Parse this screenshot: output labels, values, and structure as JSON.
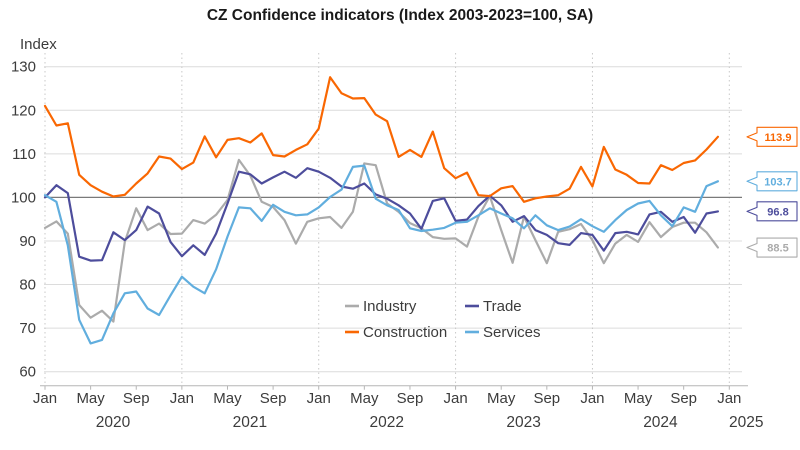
{
  "title": "CZ Confidence indicators (Index 2003-2023=100, SA)",
  "y_axis_label": "Index",
  "chart_data": {
    "type": "line",
    "frequency": "monthly",
    "x_range": [
      "2020-01",
      "2024-12"
    ],
    "x_tick_months": [
      "Jan",
      "May",
      "Sep"
    ],
    "x_tick_years": [
      "2020",
      "2021",
      "2022",
      "2023",
      "2024",
      "2025"
    ],
    "ylim": [
      60,
      130
    ],
    "y_ticks": [
      60,
      70,
      80,
      90,
      100,
      110,
      120,
      130
    ],
    "reference_line": 100,
    "grid": true,
    "legend_position": "bottom-center-inside",
    "legend_order": [
      [
        "Industry",
        "Construction"
      ],
      [
        "Trade",
        "Services"
      ]
    ],
    "series": [
      {
        "name": "Industry",
        "color": "#ababab",
        "end_label": "88.5",
        "values": [
          93,
          94.5,
          91.7,
          75.3,
          72.4,
          74,
          71.5,
          89.8,
          97.5,
          92.5,
          94,
          91.6,
          91.7,
          94.8,
          94,
          96,
          99.4,
          108.6,
          105,
          99,
          97.8,
          94.8,
          89.4,
          94.4,
          95.2,
          95.5,
          93,
          96.7,
          107.8,
          107.4,
          98.6,
          96.7,
          94.1,
          92.9,
          90.9,
          90.5,
          90.6,
          88.7,
          95.6,
          100.3,
          92.5,
          85,
          95.6,
          90.2,
          84.9,
          92.1,
          92.7,
          93.9,
          90.2,
          84.9,
          89.4,
          91.4,
          89.8,
          94.3,
          90.9,
          93.2,
          94.2,
          94.2,
          92,
          88.5
        ]
      },
      {
        "name": "Construction",
        "color": "#f96702",
        "end_label": "113.9",
        "values": [
          121,
          116.5,
          117,
          105.2,
          102.8,
          101.3,
          100.2,
          100.6,
          103.2,
          105.5,
          109.4,
          108.9,
          106.5,
          108,
          114,
          109.2,
          113.2,
          113.6,
          112.6,
          114.7,
          109.7,
          109.4,
          110.9,
          112.2,
          115.8,
          127.6,
          123.9,
          122.7,
          122.8,
          119,
          117.5,
          109.3,
          110.9,
          109.3,
          115.1,
          106.7,
          104.4,
          105.7,
          100.5,
          100.3,
          102.1,
          102.6,
          99,
          99.8,
          100.2,
          100.5,
          102,
          107,
          102.5,
          111.6,
          106.4,
          105.2,
          103.3,
          103.2,
          107.4,
          106.3,
          107.9,
          108.5,
          111,
          113.9
        ]
      },
      {
        "name": "Trade",
        "color": "#4d4d9c",
        "end_label": "96.8",
        "values": [
          100,
          102.8,
          101,
          86.4,
          85.5,
          85.6,
          92,
          90.2,
          92.5,
          97.9,
          96.3,
          89.8,
          86.5,
          89,
          86.8,
          91.7,
          98.6,
          105.9,
          105.3,
          103.2,
          104.6,
          105.9,
          104.5,
          106.7,
          105.9,
          104.5,
          102.5,
          102,
          103.2,
          100.7,
          99.7,
          98.2,
          96.3,
          92.8,
          99.2,
          99.8,
          94.6,
          94.9,
          98,
          100.4,
          98.2,
          94.4,
          95.7,
          92.5,
          91.4,
          89.5,
          89.1,
          91.8,
          91.4,
          87.8,
          91.8,
          92.1,
          91.5,
          96.1,
          96.7,
          94.4,
          95.5,
          91.9,
          96.3,
          96.8
        ]
      },
      {
        "name": "Services",
        "color": "#61aede",
        "end_label": "103.7",
        "values": [
          100.5,
          99,
          89,
          71.9,
          66.5,
          67.3,
          73.4,
          78,
          78.4,
          74.5,
          73,
          77.5,
          81.8,
          79.5,
          78,
          83.5,
          91,
          97.7,
          97.5,
          94.6,
          98.3,
          96.7,
          95.9,
          96.1,
          97.7,
          100.1,
          101.8,
          107,
          107.3,
          99.7,
          98.2,
          97.1,
          92.9,
          92.3,
          92.6,
          93,
          94.2,
          94.4,
          95.9,
          97.5,
          96.3,
          95.2,
          92.9,
          95.9,
          93.6,
          92.5,
          93.3,
          95,
          93.4,
          92.1,
          94.8,
          97.1,
          98.6,
          99.2,
          95.9,
          93.4,
          97.7,
          96.7,
          102.6,
          103.7
        ]
      }
    ],
    "colors": {
      "grid": "#dcdcdc",
      "reference_line": "#7a7a7a",
      "axis": "#b5b5b5",
      "dotted_vertical": "#c8c8c8"
    }
  }
}
